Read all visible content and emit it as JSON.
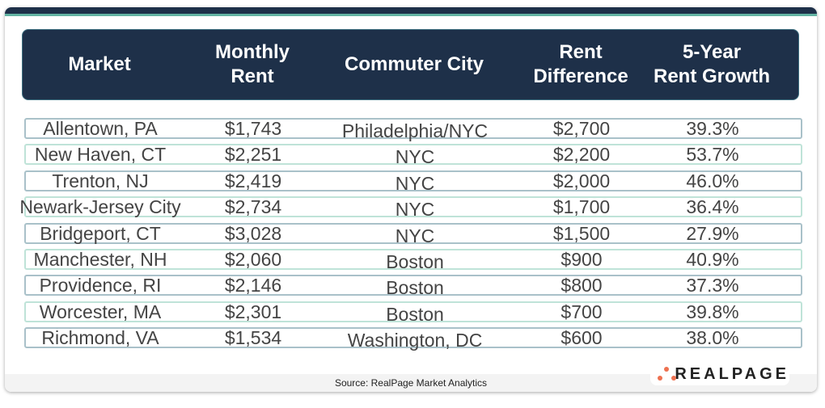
{
  "headers": [
    "Market",
    "Monthly\nRent",
    "Commuter City",
    "Rent\nDifference",
    "5-Year\nRent Growth"
  ],
  "rows": [
    [
      "Allentown, PA",
      "$1,743",
      "Philadelphia/NYC",
      "$2,700",
      "39.3%"
    ],
    [
      "New Haven, CT",
      "$2,251",
      "NYC",
      "$2,200",
      "53.7%"
    ],
    [
      "Trenton, NJ",
      "$2,419",
      "NYC",
      "$2,000",
      "46.0%"
    ],
    [
      "Newark-Jersey City",
      "$2,734",
      "NYC",
      "$1,700",
      "36.4%"
    ],
    [
      "Bridgeport, CT",
      "$3,028",
      "NYC",
      "$1,500",
      "27.9%"
    ],
    [
      "Manchester, NH",
      "$2,060",
      "Boston",
      "$900",
      "40.9%"
    ],
    [
      "Providence, RI",
      "$2,146",
      "Boston",
      "$800",
      "37.3%"
    ],
    [
      "Worcester, MA",
      "$2,301",
      "Boston",
      "$700",
      "39.8%"
    ],
    [
      "Richmond, VA",
      "$1,534",
      "Washington, DC",
      "$600",
      "38.0%"
    ]
  ],
  "source": "Source: RealPage Market Analytics",
  "logo": "REALPAGE",
  "colors": {
    "navy": "#1e3049",
    "teal": "#62b3a2",
    "accent": "#ee7150"
  }
}
